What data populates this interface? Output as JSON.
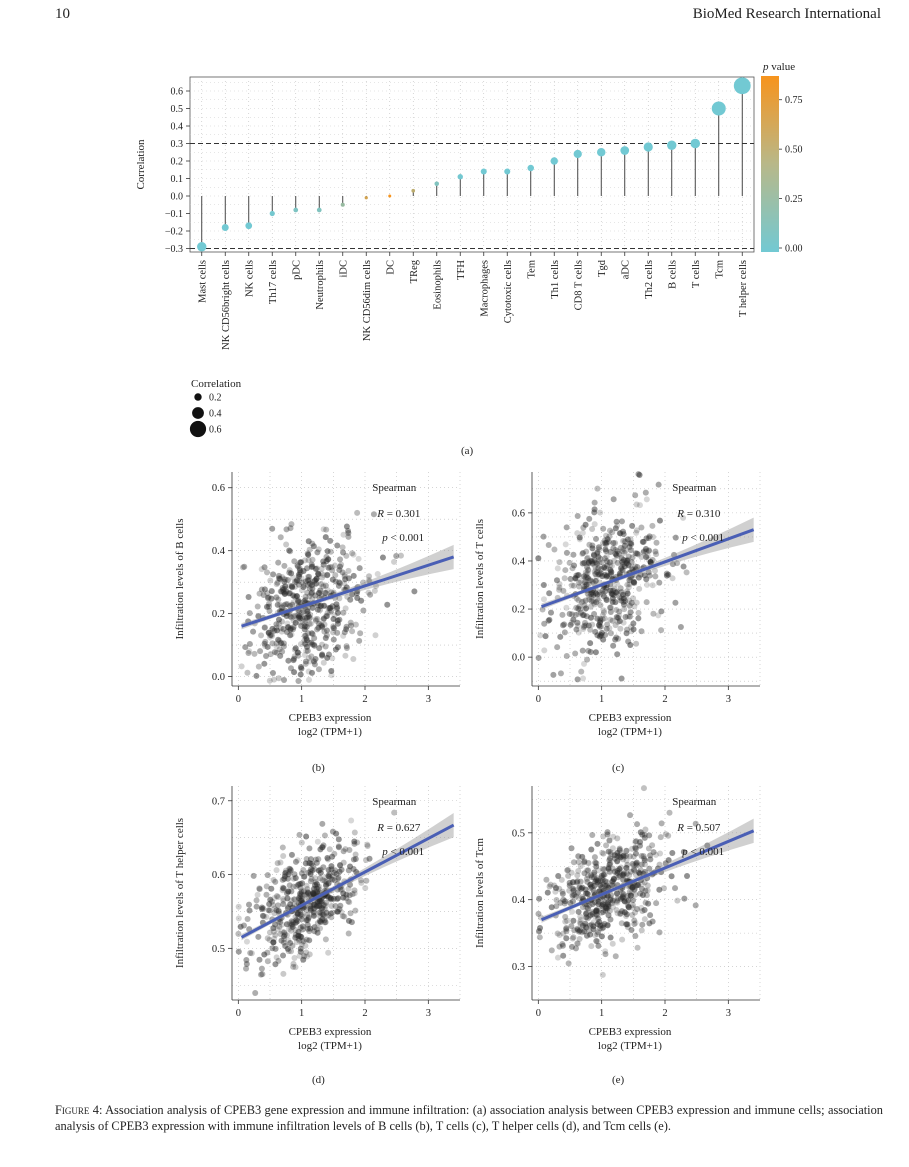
{
  "header": {
    "page_number": "10",
    "journal": "BioMed Research International"
  },
  "figure": {
    "caption_label": "Figure 4:",
    "caption_text": "Association analysis of CPEB3 gene expression and immune infiltration: (a) association analysis between CPEB3 expression and immune cells; association analysis of CPEB3 expression with immune infiltration levels of B cells (b), T cells (c), T helper cells (d), and Tcm cells (e).",
    "panel_labels": [
      "(a)",
      "(b)",
      "(c)",
      "(d)",
      "(e)"
    ]
  },
  "chart_data": [
    {
      "type": "lollipop",
      "ylabel": "Correlation",
      "ylim": [
        -0.32,
        0.68
      ],
      "yticks": [
        "0.6",
        "0.5",
        "0.4",
        "0.3",
        "0.2",
        "0.1",
        "0.0",
        "−0.1",
        "−0.2",
        "−0.3"
      ],
      "ytick_values": [
        0.6,
        0.5,
        0.4,
        0.3,
        0.2,
        0.1,
        0.0,
        -0.1,
        -0.2,
        -0.3
      ],
      "reference_lines": [
        0.3,
        -0.3
      ],
      "categories": [
        "Mast cells",
        "NK CD56bright cells",
        "NK cells",
        "Th17 cells",
        "pDC",
        "Neutrophils",
        "iDC",
        "NK CD56dim cells",
        "DC",
        "TReg",
        "Eosinophils",
        "TFH",
        "Macrophages",
        "Cytotoxic cells",
        "Tem",
        "Th1 cells",
        "CD8 T cells",
        "Tgd",
        "aDC",
        "Th2 cells",
        "B cells",
        "T cells",
        "Tcm",
        "T helper cells"
      ],
      "values": [
        -0.29,
        -0.18,
        -0.17,
        -0.1,
        -0.08,
        -0.08,
        -0.05,
        -0.01,
        0.0,
        0.03,
        0.07,
        0.11,
        0.14,
        0.14,
        0.16,
        0.2,
        0.24,
        0.25,
        0.26,
        0.28,
        0.29,
        0.3,
        0.5,
        0.63
      ],
      "p_values": [
        0.0,
        0.0,
        0.0,
        0.02,
        0.08,
        0.1,
        0.25,
        0.65,
        0.9,
        0.5,
        0.1,
        0.01,
        0.001,
        0.001,
        0.0,
        0.0,
        0.0,
        0.0,
        0.0,
        0.0,
        0.0,
        0.0,
        0.0,
        0.0
      ],
      "color_legend": {
        "title_italic": "p",
        "title_rest": " value",
        "ticks": [
          "0.75",
          "0.50",
          "0.25",
          "0.00"
        ],
        "tick_values": [
          0.75,
          0.5,
          0.25,
          0.0
        ],
        "low_color": "#72c9d3",
        "high_color": "#f7941d"
      },
      "size_legend": {
        "title": "Correlation",
        "entries": [
          "0.2",
          "0.4",
          "0.6"
        ]
      },
      "grid": true
    },
    {
      "type": "scatter",
      "panel": "(b)",
      "xlabel_line1": "CPEB3 expression",
      "xlabel_line2": "log2 (TPM+1)",
      "ylabel": "Infiltration levels of B cells",
      "xlim": [
        -0.1,
        3.5
      ],
      "ylim": [
        -0.03,
        0.65
      ],
      "xticks": [
        0,
        1,
        2,
        3
      ],
      "yticks": [
        0.0,
        0.2,
        0.4,
        0.6
      ],
      "ytick_labels": [
        "0.0",
        "0.2",
        "0.4",
        "0.6"
      ],
      "stat_title": "Spearman",
      "stat_r_label": "R",
      "stat_r_value": " = 0.301",
      "stat_p_label": "p",
      "stat_p_value": " < 0.001",
      "fit_line": {
        "x": [
          0.05,
          3.4
        ],
        "y": [
          0.16,
          0.38
        ]
      },
      "cloud": {
        "center_x": 1.1,
        "center_y": 0.22,
        "spread_x": 0.45,
        "spread_y": 0.11,
        "n": 520
      }
    },
    {
      "type": "scatter",
      "panel": "(c)",
      "xlabel_line1": "CPEB3 expression",
      "xlabel_line2": "log2 (TPM+1)",
      "ylabel": "Infiltration levels of T cells",
      "xlim": [
        -0.1,
        3.5
      ],
      "ylim": [
        -0.12,
        0.77
      ],
      "xticks": [
        0,
        1,
        2,
        3
      ],
      "yticks": [
        0.0,
        0.2,
        0.4,
        0.6
      ],
      "ytick_labels": [
        "0.0",
        "0.2",
        "0.4",
        "0.6"
      ],
      "stat_title": "Spearman",
      "stat_r_label": "R",
      "stat_r_value": " = 0.310",
      "stat_p_label": "p",
      "stat_p_value": " < 0.001",
      "fit_line": {
        "x": [
          0.05,
          3.4
        ],
        "y": [
          0.21,
          0.53
        ]
      },
      "cloud": {
        "center_x": 1.1,
        "center_y": 0.32,
        "spread_x": 0.45,
        "spread_y": 0.14,
        "n": 520
      }
    },
    {
      "type": "scatter",
      "panel": "(d)",
      "xlabel_line1": "CPEB3 expression",
      "xlabel_line2": "log2 (TPM+1)",
      "ylabel": "Infiltration levels of T helper cells",
      "xlim": [
        -0.1,
        3.5
      ],
      "ylim": [
        0.43,
        0.72
      ],
      "xticks": [
        0,
        1,
        2,
        3
      ],
      "yticks": [
        0.5,
        0.6,
        0.7
      ],
      "ytick_labels": [
        "0.5",
        "0.6",
        "0.7"
      ],
      "stat_title": "Spearman",
      "stat_r_label": "R",
      "stat_r_value": " = 0.627",
      "stat_p_label": "p",
      "stat_p_value": " < 0.001",
      "fit_line": {
        "x": [
          0.05,
          3.4
        ],
        "y": [
          0.515,
          0.667
        ]
      },
      "cloud": {
        "center_x": 1.1,
        "center_y": 0.565,
        "spread_x": 0.45,
        "spread_y": 0.035,
        "n": 520
      }
    },
    {
      "type": "scatter",
      "panel": "(e)",
      "xlabel_line1": "CPEB3 expression",
      "xlabel_line2": "log2 (TPM+1)",
      "ylabel": "Infiltration levels of Tcm",
      "xlim": [
        -0.1,
        3.5
      ],
      "ylim": [
        0.25,
        0.57
      ],
      "xticks": [
        0,
        1,
        2,
        3
      ],
      "yticks": [
        0.3,
        0.4,
        0.5
      ],
      "ytick_labels": [
        "0.3",
        "0.4",
        "0.5"
      ],
      "stat_title": "Spearman",
      "stat_r_label": "R",
      "stat_r_value": " = 0.507",
      "stat_p_label": "p",
      "stat_p_value": " < 0.001",
      "fit_line": {
        "x": [
          0.05,
          3.4
        ],
        "y": [
          0.37,
          0.503
        ]
      },
      "cloud": {
        "center_x": 1.1,
        "center_y": 0.41,
        "spread_x": 0.45,
        "spread_y": 0.04,
        "n": 520
      }
    }
  ]
}
